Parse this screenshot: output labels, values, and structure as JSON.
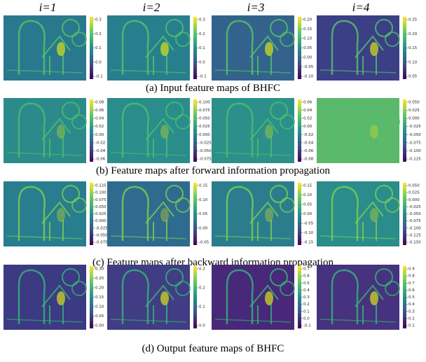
{
  "header": {
    "columns": [
      "i=1",
      "i=2",
      "i=3",
      "i=4"
    ]
  },
  "rows": [
    {
      "caption": "(a)  Input feature maps of  BHFC",
      "colorbars": [
        [
          "0.3",
          "0.2",
          "0.1",
          "0.0",
          "-0.1"
        ],
        [
          "0.3",
          "0.2",
          "0.1",
          "0.0",
          "-0.1"
        ],
        [
          "0.20",
          "0.15",
          "0.10",
          "0.05",
          "0.00",
          "-0.05",
          "-0.10"
        ],
        [
          "0.25",
          "0.20",
          "0.15",
          "0.10",
          "0.05"
        ]
      ]
    },
    {
      "caption": "(b) Feature maps after forward information propagation",
      "colorbars": [
        [
          "0.08",
          "0.06",
          "0.04",
          "0.02",
          "0.00",
          "-0.02",
          "-0.04",
          "-0.06"
        ],
        [
          "0.100",
          "0.075",
          "0.050",
          "0.025",
          "0.000",
          "-0.025",
          "-0.050",
          "-0.075"
        ],
        [
          "0.06",
          "0.04",
          "0.02",
          "0.00",
          "-0.02",
          "-0.04",
          "-0.06",
          "-0.08"
        ],
        [
          "0.050",
          "0.025",
          "0.000",
          "-0.025",
          "-0.050",
          "-0.075",
          "-0.100",
          "-0.125"
        ]
      ]
    },
    {
      "caption": "(c)  Feature maps after backward information propagation",
      "colorbars": [
        [
          "0.125",
          "0.100",
          "0.075",
          "0.050",
          "0.025",
          "0.000",
          "-0.025",
          "-0.050",
          "-0.075"
        ],
        [
          "0.15",
          "0.10",
          "0.05",
          "0.00",
          "-0.05"
        ],
        [
          "0.15",
          "0.10",
          "0.05",
          "0.00",
          "-0.05",
          "-0.10",
          "-0.15"
        ],
        [
          "0.050",
          "0.025",
          "0.000",
          "-0.025",
          "-0.050",
          "-0.075",
          "-0.100",
          "-0.125",
          "-0.150"
        ]
      ]
    },
    {
      "caption": "(d)  Output feature maps of BHFC",
      "colorbars": [
        [
          "0.30",
          "0.25",
          "0.20",
          "0.15",
          "0.10",
          "0.05",
          "0.00"
        ],
        [
          "0.3",
          "0.2",
          "0.1",
          "0.0"
        ],
        [
          "0.7",
          "0.6",
          "0.5",
          "0.4",
          "0.3",
          "0.2",
          "0.1",
          "0.0",
          "-0.1"
        ],
        [
          "0.9",
          "0.8",
          "0.7",
          "0.6",
          "0.5",
          "0.4",
          "0.3",
          "0.2",
          "0.1"
        ]
      ]
    }
  ]
}
